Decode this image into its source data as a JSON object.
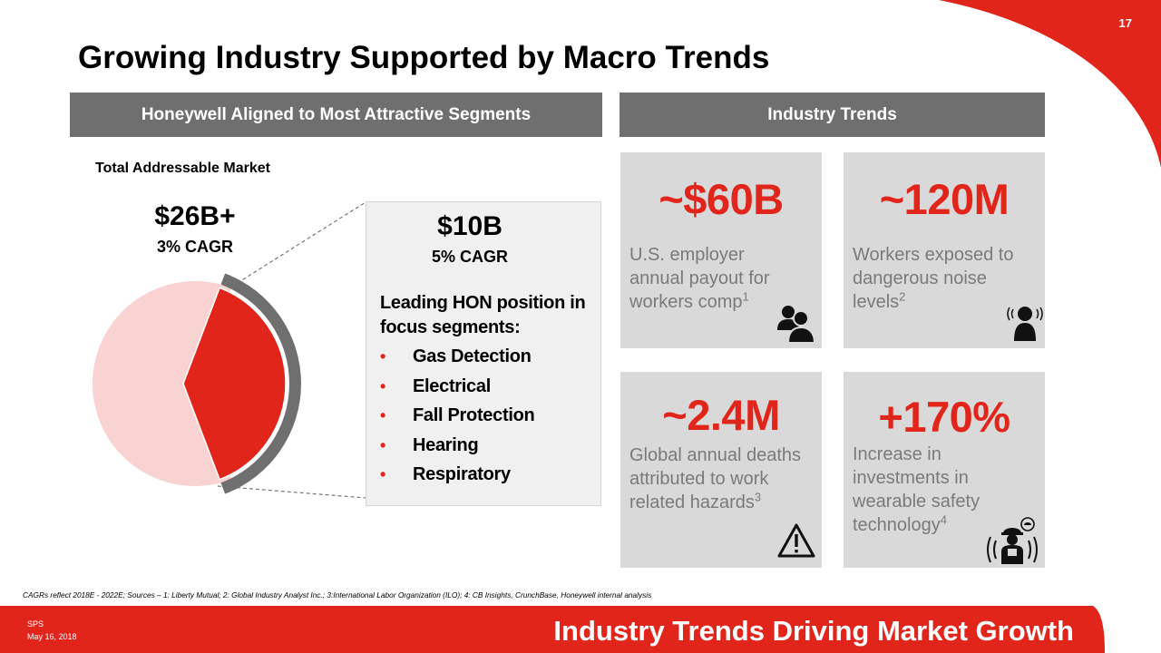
{
  "slide": {
    "page_number": "17",
    "title": "Growing Industry Supported by Macro Trends"
  },
  "left_section": {
    "header": "Honeywell Aligned to Most Attractive Segments",
    "tam_label": "Total Addressable Market",
    "total_value": "$26B+",
    "total_cagr": "3% CAGR",
    "segment_value": "$10B",
    "segment_cagr": "5% CAGR",
    "focus_heading": "Leading HON position in focus segments:",
    "focus_segments": [
      "Gas Detection",
      "Electrical",
      "Fall Protection",
      "Hearing",
      "Respiratory"
    ],
    "pie_share": {
      "total_billion": 26,
      "focus_billion": 10
    }
  },
  "right_section": {
    "header": "Industry Trends",
    "trends": [
      {
        "value": "~$60B",
        "desc_lines": [
          "U.S. employer",
          "annual payout for",
          "workers comp"
        ],
        "footnote": "1",
        "icon": "group-icon"
      },
      {
        "value": "~120M",
        "desc_lines": [
          "Workers exposed to",
          "dangerous noise",
          "levels"
        ],
        "footnote": "2",
        "icon": "noise-icon"
      },
      {
        "value": "~2.4M",
        "desc_lines": [
          "Global annual deaths",
          "attributed to work",
          "related hazards"
        ],
        "footnote": "3",
        "icon": "warning-icon"
      },
      {
        "value": "+170%",
        "desc_lines": [
          "Increase in",
          "investments in",
          "wearable safety",
          "technology"
        ],
        "footnote": "4",
        "icon": "connected-worker-icon"
      }
    ]
  },
  "footnote": "CAGRs reflect 2018E - 2022E; Sources – 1: Liberty Mutual; 2: Global Industry Analyst Inc.; 3:International Labor Organization (ILO); 4: CB Insights, CrunchBase, Honeywell internal analysis",
  "footer": {
    "code": "SPS",
    "date": "May 16, 2018",
    "tagline": "Industry Trends Driving Market Growth"
  },
  "colors": {
    "accent": "#e1251b",
    "pie_light": "#f8d3d2",
    "header_gray": "#6f6f6f",
    "card_gray": "#d9d9d9"
  }
}
